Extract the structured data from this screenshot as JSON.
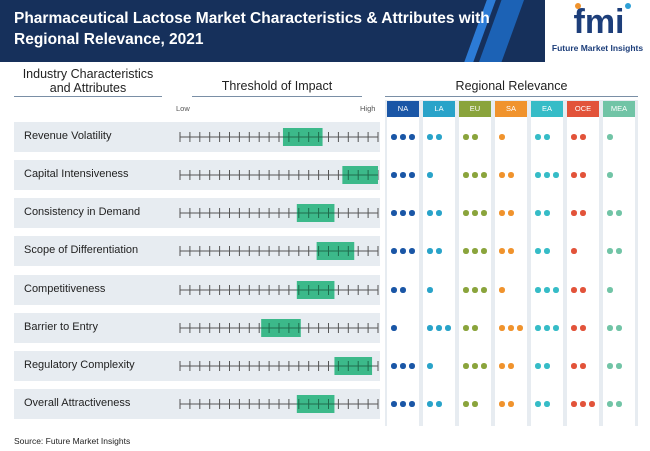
{
  "header": {
    "title": "Pharmaceutical Lactose Market Characteristics & Attributes with Regional Relevance, 2021",
    "logo_mark": "fmi",
    "logo_text": "Future Market Insights"
  },
  "sections": {
    "left": "Industry Characteristics and Attributes",
    "middle": "Threshold of Impact",
    "right": "Regional Relevance"
  },
  "scale": {
    "low": "Low",
    "high": "High"
  },
  "source": "Source: Future Market Insights",
  "chart_data": {
    "type": "table",
    "regions": [
      {
        "name": "NA",
        "color": "#1a56a6"
      },
      {
        "name": "LA",
        "color": "#29a3c9"
      },
      {
        "name": "EU",
        "color": "#8aa43c"
      },
      {
        "name": "SA",
        "color": "#f0932d"
      },
      {
        "name": "EA",
        "color": "#36bcc7"
      },
      {
        "name": "OCE",
        "color": "#e2533a"
      },
      {
        "name": "MEA",
        "color": "#71c4a6"
      }
    ],
    "impact_scale": [
      0,
      1
    ],
    "attributes": [
      {
        "name": "Revenue Volatility",
        "impact": [
          0.52,
          0.72
        ],
        "relevance": [
          3,
          2,
          2,
          1,
          2,
          2,
          1
        ]
      },
      {
        "name": "Capital Intensiveness",
        "impact": [
          0.82,
          1.0
        ],
        "relevance": [
          3,
          1,
          3,
          2,
          3,
          2,
          1
        ]
      },
      {
        "name": "Consistency in Demand",
        "impact": [
          0.59,
          0.78
        ],
        "relevance": [
          3,
          2,
          3,
          2,
          2,
          2,
          2
        ]
      },
      {
        "name": "Scope of Differentiation",
        "impact": [
          0.69,
          0.88
        ],
        "relevance": [
          3,
          2,
          3,
          2,
          2,
          1,
          2
        ]
      },
      {
        "name": "Competitiveness",
        "impact": [
          0.59,
          0.78
        ],
        "relevance": [
          2,
          1,
          3,
          1,
          3,
          2,
          1
        ]
      },
      {
        "name": "Barrier to Entry",
        "impact": [
          0.41,
          0.61
        ],
        "relevance": [
          1,
          3,
          2,
          3,
          3,
          2,
          2
        ]
      },
      {
        "name": "Regulatory Complexity",
        "impact": [
          0.78,
          0.97
        ],
        "relevance": [
          3,
          1,
          3,
          2,
          2,
          2,
          2
        ]
      },
      {
        "name": "Overall Attractiveness",
        "impact": [
          0.59,
          0.78
        ],
        "relevance": [
          3,
          2,
          2,
          2,
          2,
          3,
          2
        ]
      }
    ],
    "impact_color": "#3cb98a",
    "row_color": "#e7ecf1"
  }
}
